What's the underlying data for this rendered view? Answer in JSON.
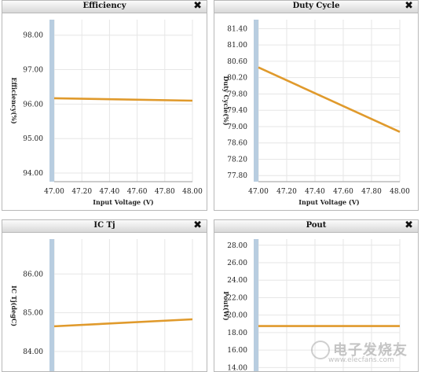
{
  "panels": [
    {
      "title": "Efficiency",
      "close_label": "✖",
      "chart": {
        "type": "line",
        "xlabel": "Input Voltage (V)",
        "ylabel": "Efficiency(%)",
        "x_ticks": [
          "47.00",
          "47.20",
          "47.40",
          "47.60",
          "47.80",
          "48.00"
        ],
        "y_ticks": [
          "94.00",
          "95.00",
          "96.00",
          "97.00",
          "98.00"
        ],
        "xlim": [
          47.0,
          48.0
        ],
        "ylim": [
          93.75,
          98.45
        ],
        "series": [
          {
            "x": [
              47.0,
              48.0
            ],
            "y": [
              96.17,
              96.1
            ]
          }
        ],
        "grid": true
      }
    },
    {
      "title": "Duty Cycle",
      "close_label": "✖",
      "chart": {
        "type": "line",
        "xlabel": "Input Voltage (V)",
        "ylabel": "Duty Cycle(%)",
        "x_ticks": [
          "47.00",
          "47.20",
          "47.40",
          "47.60",
          "47.80",
          "48.00"
        ],
        "y_ticks": [
          "77.80",
          "78.20",
          "78.60",
          "79.00",
          "79.40",
          "79.80",
          "80.20",
          "80.60",
          "81.00",
          "81.40"
        ],
        "xlim": [
          47.0,
          48.0
        ],
        "ylim": [
          77.65,
          81.62
        ],
        "series": [
          {
            "x": [
              47.0,
              48.0
            ],
            "y": [
              80.45,
              78.87
            ]
          }
        ],
        "grid": true
      }
    },
    {
      "title": "IC Tj",
      "close_label": "✖",
      "chart": {
        "type": "line",
        "xlabel": "",
        "ylabel": "IC Tj(degC)",
        "x_ticks": [],
        "y_ticks": [
          "84.00",
          "85.00",
          "86.00"
        ],
        "xlim": [
          47.0,
          48.0
        ],
        "ylim": [
          83.45,
          86.9
        ],
        "series": [
          {
            "x": [
              47.0,
              48.0
            ],
            "y": [
              84.65,
              84.83
            ]
          }
        ],
        "grid": true
      }
    },
    {
      "title": "Pout",
      "close_label": "✖",
      "chart": {
        "type": "line",
        "xlabel": "",
        "ylabel": "Pout(W)",
        "x_ticks": [],
        "y_ticks": [
          "14.00",
          "16.00",
          "18.00",
          "20.00",
          "22.00",
          "24.00",
          "26.00",
          "28.00"
        ],
        "xlim": [
          47.0,
          48.0
        ],
        "ylim": [
          13.4,
          28.7
        ],
        "series": [
          {
            "x": [
              47.0,
              48.0
            ],
            "y": [
              18.75,
              18.75
            ]
          }
        ],
        "grid": true
      }
    }
  ],
  "chart_data": [
    {
      "type": "line",
      "title": "Efficiency",
      "xlabel": "Input Voltage (V)",
      "ylabel": "Efficiency(%)",
      "x": [
        47.0,
        48.0
      ],
      "series": [
        {
          "values": [
            96.17,
            96.1
          ]
        }
      ],
      "xlim": [
        47.0,
        48.0
      ],
      "ylim": [
        93.75,
        98.45
      ],
      "grid": true
    },
    {
      "type": "line",
      "title": "Duty Cycle",
      "xlabel": "Input Voltage (V)",
      "ylabel": "Duty Cycle(%)",
      "x": [
        47.0,
        48.0
      ],
      "series": [
        {
          "values": [
            80.45,
            78.87
          ]
        }
      ],
      "xlim": [
        47.0,
        48.0
      ],
      "ylim": [
        77.65,
        81.62
      ],
      "grid": true
    },
    {
      "type": "line",
      "title": "IC Tj",
      "xlabel": "",
      "ylabel": "IC Tj(degC)",
      "x": [
        47.0,
        48.0
      ],
      "series": [
        {
          "values": [
            84.65,
            84.83
          ]
        }
      ],
      "xlim": [
        47.0,
        48.0
      ],
      "ylim": [
        83.45,
        86.9
      ],
      "grid": true
    },
    {
      "type": "line",
      "title": "Pout",
      "xlabel": "",
      "ylabel": "Pout(W)",
      "x": [
        47.0,
        48.0
      ],
      "series": [
        {
          "values": [
            18.75,
            18.75
          ]
        }
      ],
      "xlim": [
        47.0,
        48.0
      ],
      "ylim": [
        13.4,
        28.7
      ],
      "grid": true
    }
  ],
  "colors": {
    "line": "#e09a2c",
    "scrollbar": "#b8cde0",
    "grid": "#e6e6e6",
    "axis": "#9a9a9a"
  },
  "watermark": {
    "main": "电子发烧友",
    "url": "www.elecfans.com"
  }
}
